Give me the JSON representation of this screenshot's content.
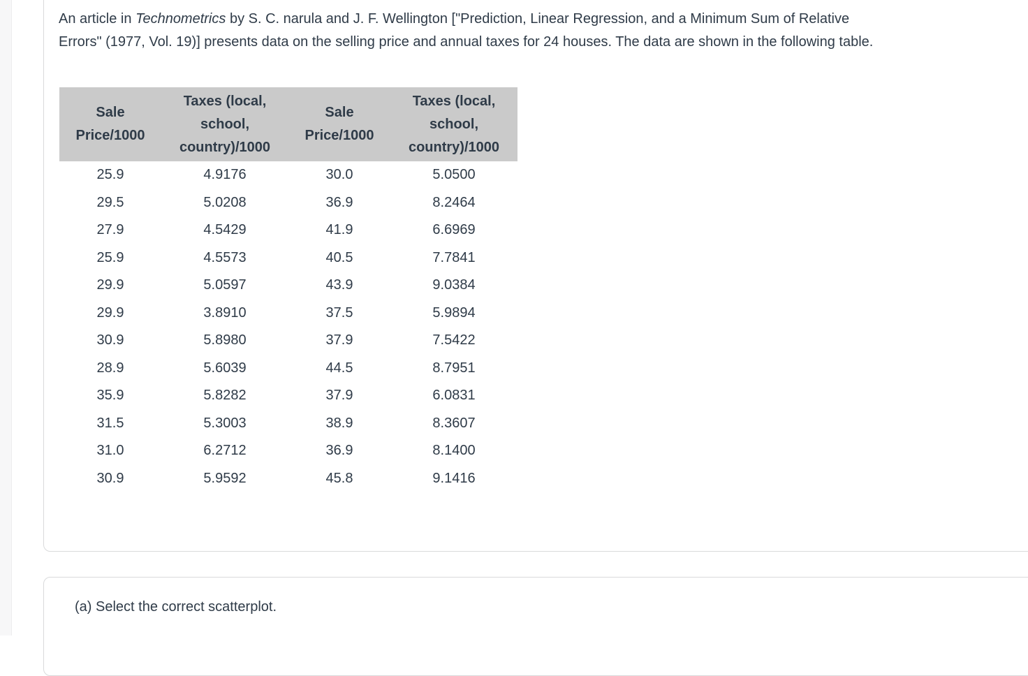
{
  "colors": {
    "text": "#2f3b48",
    "table_header_bg": "#cacaca",
    "card_border": "#d9dadb",
    "left_gutter": "#f7f7f8"
  },
  "problem": {
    "intro_before_journal": "An article in ",
    "journal": "Technometrics",
    "intro_after_journal": " by S. C. narula and J. F. Wellington [\"Prediction, Linear Regression, and a Minimum Sum of Relative\nErrors\" (1977, Vol. 19)] presents data on the selling price and annual taxes for 24 houses. The data are shown in the following table."
  },
  "table": {
    "headers": [
      "Sale\nPrice/1000",
      "Taxes (local,\nschool,\ncountry)/1000",
      "Sale\nPrice/1000",
      "Taxes (local,\nschool,\ncountry)/1000"
    ],
    "rows": [
      [
        "25.9",
        "4.9176",
        "30.0",
        "5.0500"
      ],
      [
        "29.5",
        "5.0208",
        "36.9",
        "8.2464"
      ],
      [
        "27.9",
        "4.5429",
        "41.9",
        "6.6969"
      ],
      [
        "25.9",
        "4.5573",
        "40.5",
        "7.7841"
      ],
      [
        "29.9",
        "5.0597",
        "43.9",
        "9.0384"
      ],
      [
        "29.9",
        "3.8910",
        "37.5",
        "5.9894"
      ],
      [
        "30.9",
        "5.8980",
        "37.9",
        "7.5422"
      ],
      [
        "28.9",
        "5.6039",
        "44.5",
        "8.7951"
      ],
      [
        "35.9",
        "5.8282",
        "37.9",
        "6.0831"
      ],
      [
        "31.5",
        "5.3003",
        "38.9",
        "8.3607"
      ],
      [
        "31.0",
        "6.2712",
        "36.9",
        "8.1400"
      ],
      [
        "30.9",
        "5.9592",
        "45.8",
        "9.1416"
      ]
    ]
  },
  "question": {
    "part_a_label": "(a) Select the correct scatterplot."
  }
}
